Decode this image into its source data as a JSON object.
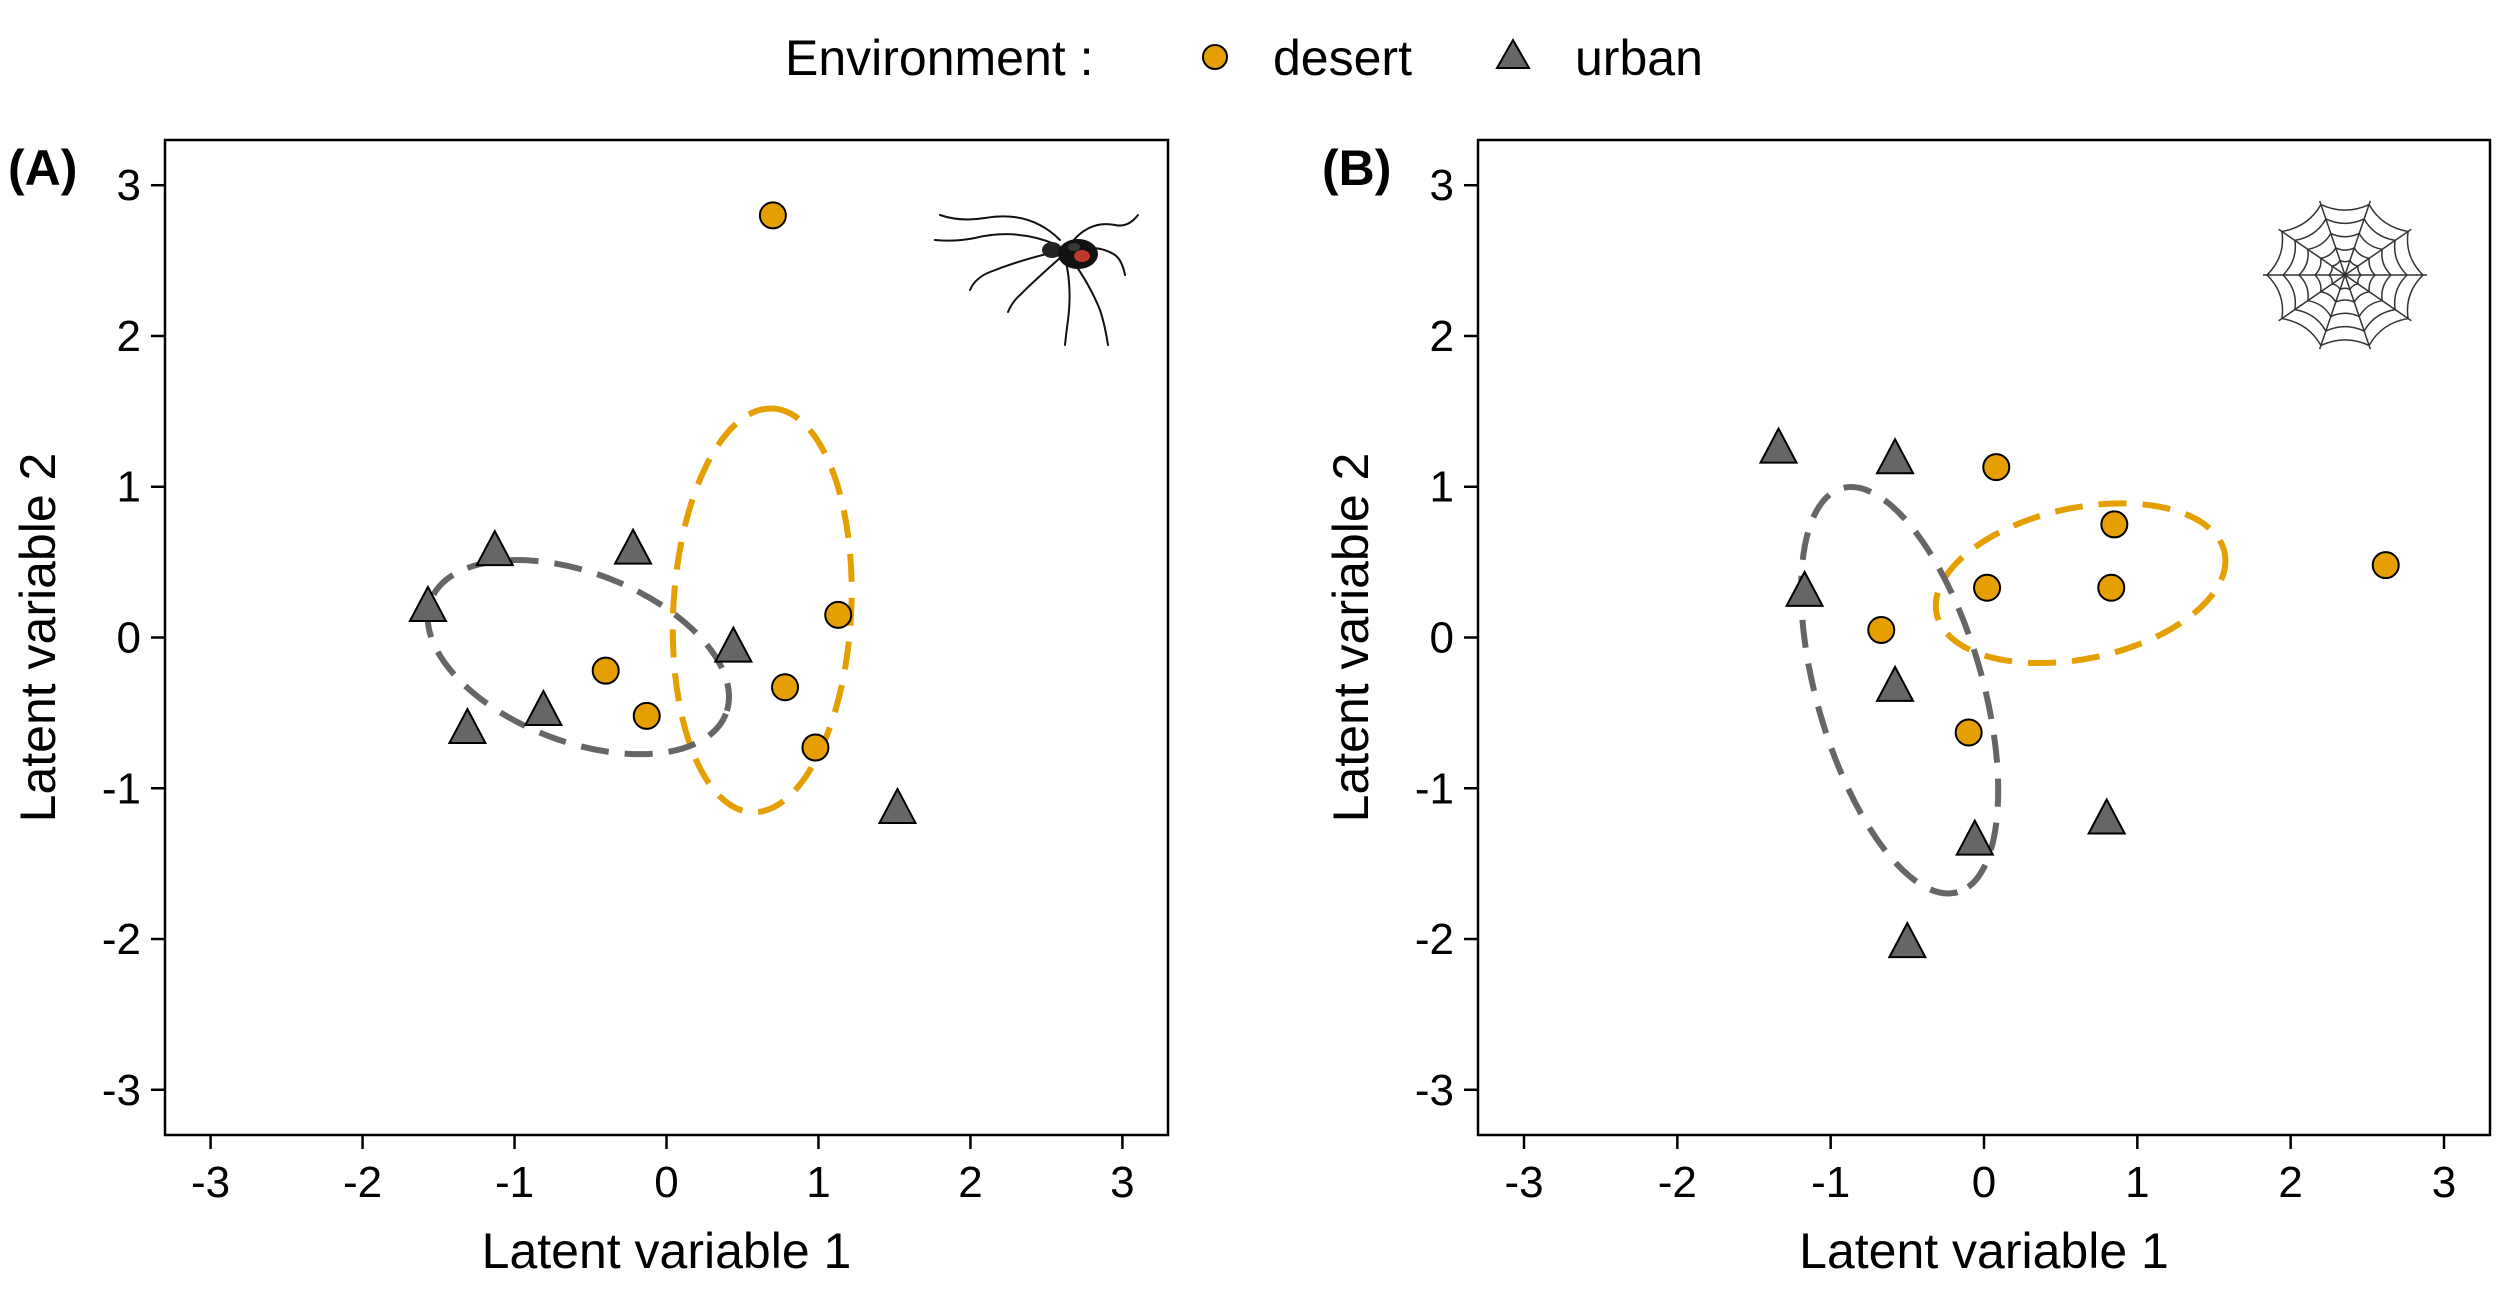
{
  "legend": {
    "title": "Environment :",
    "items": [
      {
        "label": "desert",
        "shape": "circle",
        "color": "#E69F00"
      },
      {
        "label": "urban",
        "shape": "triangle",
        "color": "#666666"
      }
    ]
  },
  "colors": {
    "desert": "#E69F00",
    "urban": "#666666",
    "outline": "#000000"
  },
  "panels": [
    {
      "label": "(A)",
      "icon": "spider-icon",
      "chart_data": {
        "type": "scatter",
        "xlabel": "Latent variable 1",
        "ylabel": "Latent variable 2",
        "xlim": [
          -3.3,
          3.3
        ],
        "ylim": [
          -3.3,
          3.3
        ],
        "xticks": [
          -3,
          -2,
          -1,
          0,
          1,
          2,
          3
        ],
        "yticks": [
          -3,
          -2,
          -1,
          0,
          1,
          2,
          3
        ],
        "grid": false,
        "series": [
          {
            "name": "desert",
            "points": [
              [
                0.7,
                2.8
              ],
              [
                -0.4,
                -0.22
              ],
              [
                -0.13,
                -0.52
              ],
              [
                0.78,
                -0.33
              ],
              [
                1.13,
                0.15
              ],
              [
                0.98,
                -0.73
              ]
            ]
          },
          {
            "name": "urban",
            "points": [
              [
                -1.57,
                0.2
              ],
              [
                -1.13,
                0.57
              ],
              [
                -0.22,
                0.58
              ],
              [
                -0.81,
                -0.49
              ],
              [
                -1.31,
                -0.61
              ],
              [
                0.44,
                -0.07
              ],
              [
                1.52,
                -1.14
              ]
            ]
          }
        ],
        "ellipses": [
          {
            "series": "desert",
            "center": [
              0.63,
              0.18
            ],
            "radii": [
              1.33,
              0.59
            ],
            "angle_deg": 87
          },
          {
            "series": "urban",
            "center": [
              -0.58,
              -0.13
            ],
            "radii": [
              1.04,
              0.56
            ],
            "angle_deg": -21
          }
        ]
      }
    },
    {
      "label": "(B)",
      "icon": "spiderweb-icon",
      "chart_data": {
        "type": "scatter",
        "xlabel": "Latent variable 1",
        "ylabel": "Latent variable 2",
        "xlim": [
          -3.3,
          3.3
        ],
        "ylim": [
          -3.3,
          3.3
        ],
        "xticks": [
          -3,
          -2,
          -1,
          0,
          1,
          2,
          3
        ],
        "yticks": [
          -3,
          -2,
          -1,
          0,
          1,
          2,
          3
        ],
        "grid": false,
        "series": [
          {
            "name": "desert",
            "points": [
              [
                0.08,
                1.13
              ],
              [
                0.85,
                0.75
              ],
              [
                -0.67,
                0.05
              ],
              [
                0.02,
                0.33
              ],
              [
                0.83,
                0.33
              ],
              [
                2.62,
                0.48
              ],
              [
                -0.1,
                -0.63
              ]
            ]
          },
          {
            "name": "urban",
            "points": [
              [
                -1.34,
                1.25
              ],
              [
                -0.58,
                1.18
              ],
              [
                -1.17,
                0.3
              ],
              [
                -0.58,
                -0.33
              ],
              [
                -0.06,
                -1.35
              ],
              [
                0.8,
                -1.21
              ],
              [
                -0.5,
                -2.03
              ]
            ]
          }
        ],
        "ellipses": [
          {
            "series": "desert",
            "center": [
              0.63,
              0.36
            ],
            "radii": [
              0.96,
              0.5
            ],
            "angle_deg": 12
          },
          {
            "series": "urban",
            "center": [
              -0.55,
              -0.35
            ],
            "radii": [
              1.37,
              0.55
            ],
            "angle_deg": -74
          }
        ]
      }
    }
  ]
}
